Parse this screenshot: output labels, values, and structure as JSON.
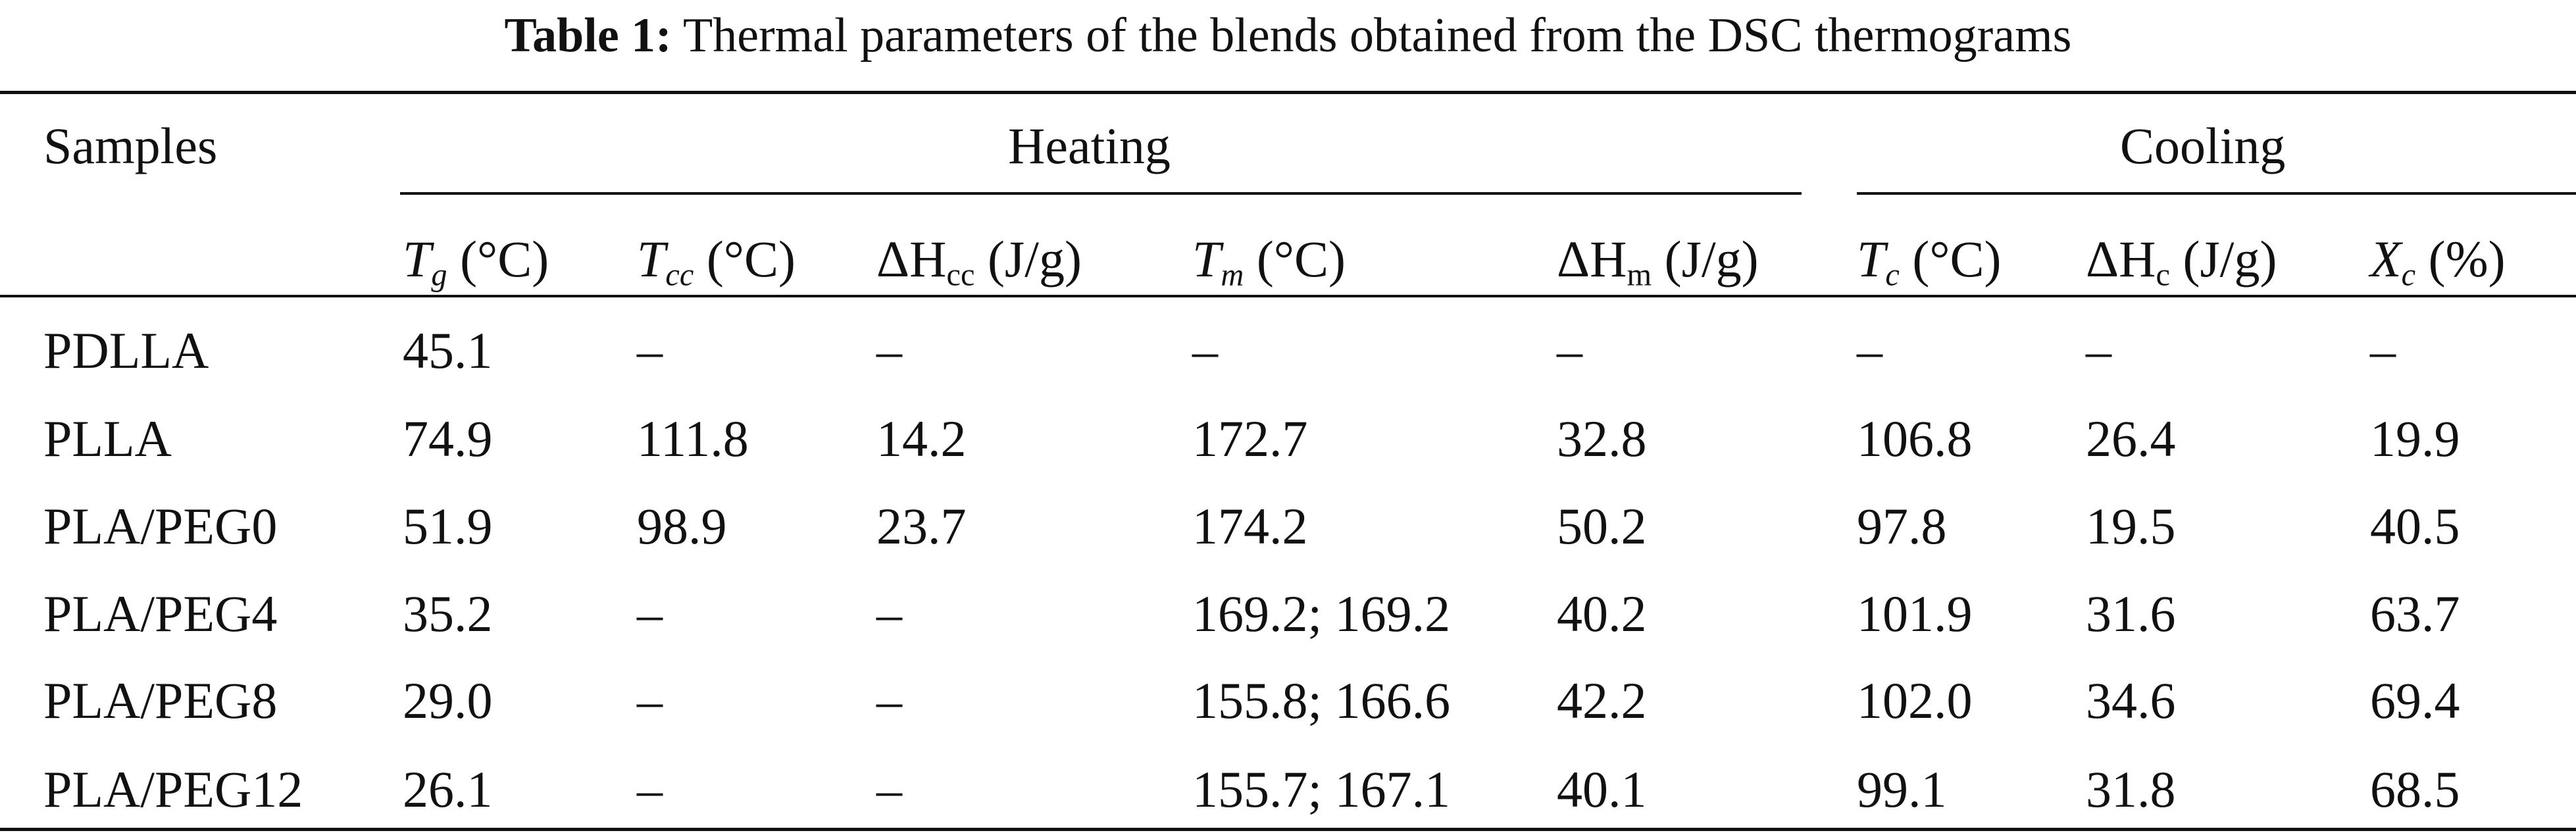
{
  "caption": {
    "label": "Table 1:",
    "text": " Thermal parameters of the blends obtained from the DSC thermograms"
  },
  "groups": {
    "samples": "Samples",
    "heating": "Heating",
    "cooling": "Cooling"
  },
  "columns": {
    "tg": {
      "sym": "T",
      "sub": "g",
      "unit": " (°C)"
    },
    "tcc": {
      "sym": "T",
      "sub": "cc",
      "unit": " (°C)"
    },
    "dhcc": {
      "sym": "ΔH",
      "sub": "cc",
      "unit": " (J/g)"
    },
    "tm": {
      "sym": "T",
      "sub": "m",
      "unit": " (°C)"
    },
    "dhm": {
      "sym": "ΔH",
      "sub": "m",
      "unit": " (J/g)"
    },
    "tc": {
      "sym": "T",
      "sub": "c",
      "unit": " (°C)"
    },
    "dhc": {
      "sym": "ΔH",
      "sub": "c",
      "unit": " (J/g)"
    },
    "xc": {
      "sym": "X",
      "sub": "c",
      "unit": " (%)"
    }
  },
  "rows": [
    [
      "PDLLA",
      "45.1",
      "–",
      "–",
      "–",
      "–",
      "–",
      "–",
      "–"
    ],
    [
      "PLLA",
      "74.9",
      "111.8",
      "14.2",
      "172.7",
      "32.8",
      "106.8",
      "26.4",
      "19.9"
    ],
    [
      "PLA/PEG0",
      "51.9",
      "98.9",
      "23.7",
      "174.2",
      "50.2",
      "97.8",
      "19.5",
      "40.5"
    ],
    [
      "PLA/PEG4",
      "35.2",
      "–",
      "–",
      "169.2; 169.2",
      "40.2",
      "101.9",
      "31.6",
      "63.7"
    ],
    [
      "PLA/PEG8",
      "29.0",
      "–",
      "–",
      "155.8; 166.6",
      "42.2",
      "102.0",
      "34.6",
      "69.4"
    ],
    [
      "PLA/PEG12",
      "26.1",
      "–",
      "–",
      "155.7; 167.1",
      "40.1",
      "99.1",
      "31.8",
      "68.5"
    ]
  ]
}
